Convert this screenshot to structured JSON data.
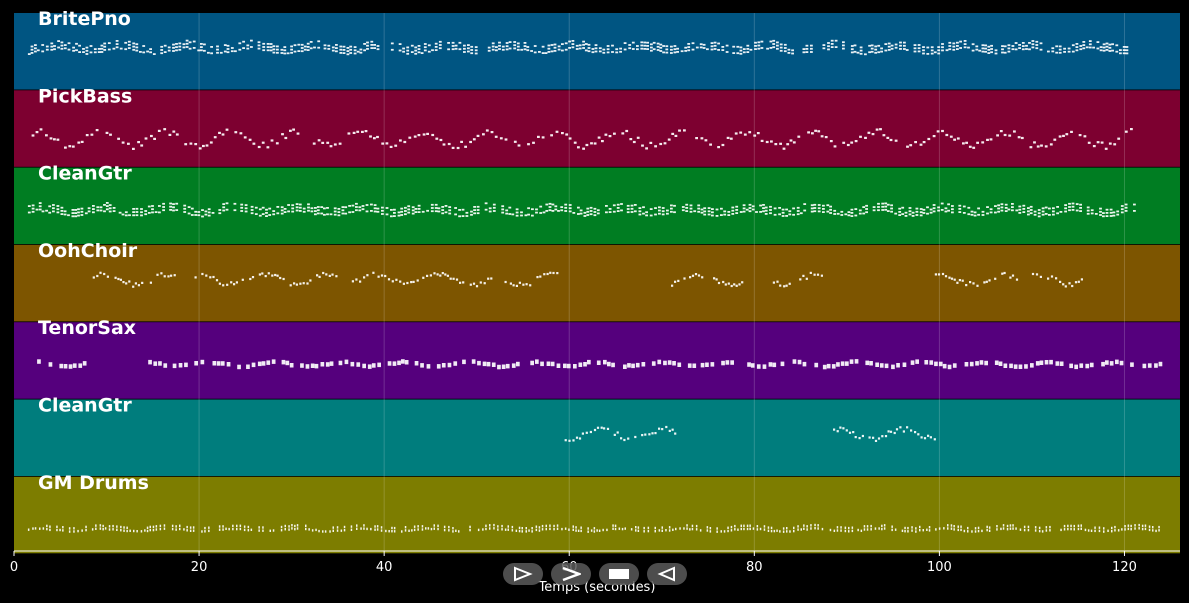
{
  "tracks": [
    {
      "name": "BritePno",
      "color": "#005582",
      "density": 0.93,
      "style": "chord",
      "segments": [
        [
          1.5,
          120.5
        ]
      ],
      "pitch_base": 0.48
    },
    {
      "name": "PickBass",
      "color": "#7d0030",
      "density": 0.9,
      "style": "bass",
      "segments": [
        [
          1.5,
          121
        ]
      ],
      "pitch_base": 0.62
    },
    {
      "name": "CleanGtr",
      "color": "#007d22",
      "density": 0.95,
      "style": "chord",
      "segments": [
        [
          1.5,
          121
        ]
      ],
      "pitch_base": 0.58
    },
    {
      "name": "OohChoir",
      "color": "#7d5500",
      "density": 0.85,
      "style": "melody",
      "segments": [
        [
          8.5,
          17.5
        ],
        [
          19.5,
          35
        ],
        [
          36.5,
          51.5
        ],
        [
          53,
          59
        ],
        [
          71,
          79
        ],
        [
          82,
          87.5
        ],
        [
          99.5,
          108.5
        ],
        [
          110,
          115.5
        ]
      ],
      "pitch_base": 0.44
    },
    {
      "name": "TenorSax",
      "color": "#55007d",
      "density": 0.85,
      "style": "sax",
      "segments": [
        [
          2.5,
          7.5
        ],
        [
          14.5,
          124
        ]
      ],
      "pitch_base": 0.52
    },
    {
      "name": "CleanGtr",
      "color": "#007d7d",
      "density": 0.95,
      "style": "melody",
      "segments": [
        [
          59.5,
          71.5
        ],
        [
          88.5,
          99.5
        ]
      ],
      "pitch_base": 0.44
    },
    {
      "name": "GM Drums",
      "color": "#7d7d00",
      "density": 0.9,
      "style": "drums",
      "segments": [
        [
          1.5,
          124
        ]
      ],
      "pitch_base": 0.68
    }
  ],
  "x_axis": {
    "ticks": [
      "0",
      "20",
      "40",
      "60",
      "80",
      "100",
      "120"
    ],
    "tick_values": [
      0,
      20,
      40,
      60,
      80,
      100,
      120
    ],
    "label": "Temps (secondes)",
    "range": [
      0,
      126
    ]
  },
  "controls": [
    {
      "name": "play-from-start-icon"
    },
    {
      "name": "play-icon"
    },
    {
      "name": "stop-icon"
    },
    {
      "name": "rewind-icon"
    }
  ]
}
